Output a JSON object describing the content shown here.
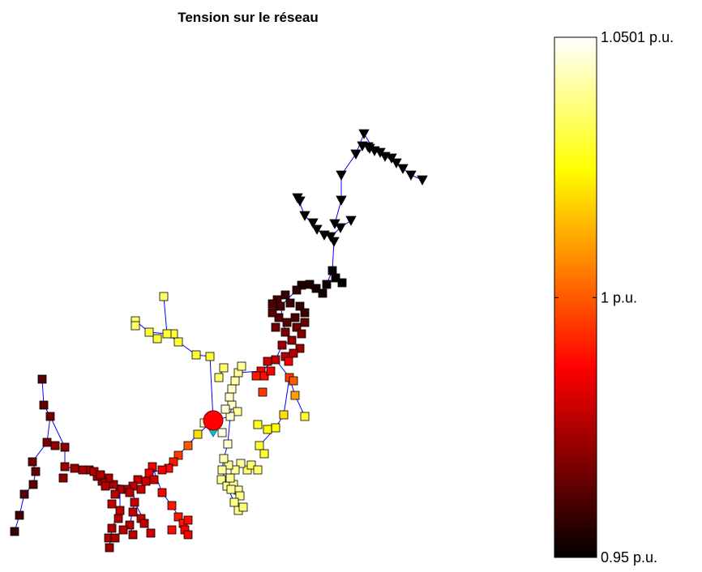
{
  "chart_data": {
    "type": "scatter",
    "title": "Tension sur le réseau",
    "xlabel": "",
    "ylabel": "",
    "grid": false,
    "axes_visible": false,
    "legend": "none",
    "colormap": "hot",
    "colorbar": {
      "location": "right",
      "range": [
        0.95,
        1.0501
      ],
      "ticks": [
        {
          "value": 0.95,
          "label": "0.95 p.u."
        },
        {
          "value": 1.0,
          "label": "1 p.u."
        },
        {
          "value": 1.0501,
          "label": "1.0501 p.u."
        }
      ]
    },
    "series": [
      {
        "marker": "circle",
        "role": "source",
        "points": [
          [
            263,
            519,
            1.0
          ]
        ]
      },
      {
        "marker": "triangle-down",
        "points": [
          [
            367,
            244,
            0.95
          ],
          [
            370,
            248,
            0.95
          ],
          [
            376,
            266,
            0.95
          ],
          [
            386,
            275,
            0.95
          ],
          [
            391,
            283,
            0.95
          ],
          [
            400,
            290,
            0.95
          ],
          [
            408,
            292,
            0.95
          ],
          [
            413,
            276,
            0.95
          ],
          [
            420,
            281,
            0.95
          ],
          [
            433,
            272,
            0.95
          ],
          [
            421,
            247,
            0.95
          ],
          [
            421,
            216,
            0.95
          ],
          [
            439,
            190,
            0.95
          ],
          [
            447,
            180,
            0.95
          ],
          [
            449,
            165,
            0.95
          ],
          [
            454,
            181,
            0.95
          ],
          [
            462,
            186,
            0.95
          ],
          [
            469,
            188,
            0.95
          ],
          [
            475,
            193,
            0.95
          ],
          [
            483,
            195,
            0.95
          ],
          [
            489,
            201,
            0.95
          ],
          [
            497,
            208,
            0.95
          ],
          [
            507,
            216,
            0.95
          ],
          [
            521,
            222,
            0.95
          ],
          [
            456,
            183,
            0.95
          ],
          [
            412,
            298,
            0.95
          ]
        ]
      },
      {
        "marker": "square",
        "points": [
          [
            410,
            334,
            0.951
          ],
          [
            414,
            343,
            0.951
          ],
          [
            403,
            351,
            0.952
          ],
          [
            422,
            349,
            0.951
          ],
          [
            398,
            362,
            0.953
          ],
          [
            390,
            356,
            0.953
          ],
          [
            382,
            351,
            0.954
          ],
          [
            372,
            352,
            0.955
          ],
          [
            366,
            358,
            0.956
          ],
          [
            352,
            364,
            0.958
          ],
          [
            342,
            370,
            0.96
          ],
          [
            336,
            375,
            0.961
          ],
          [
            346,
            378,
            0.96
          ],
          [
            358,
            374,
            0.958
          ],
          [
            370,
            378,
            0.957
          ],
          [
            376,
            386,
            0.958
          ],
          [
            364,
            392,
            0.96
          ],
          [
            354,
            398,
            0.962
          ],
          [
            344,
            392,
            0.962
          ],
          [
            336,
            386,
            0.963
          ],
          [
            340,
            404,
            0.966
          ],
          [
            352,
            410,
            0.967
          ],
          [
            366,
            404,
            0.966
          ],
          [
            376,
            398,
            0.965
          ],
          [
            372,
            412,
            0.968
          ],
          [
            360,
            420,
            0.97
          ],
          [
            348,
            426,
            0.972
          ],
          [
            370,
            430,
            0.973
          ],
          [
            362,
            436,
            0.975
          ],
          [
            352,
            440,
            0.976
          ],
          [
            340,
            444,
            0.978
          ],
          [
            330,
            446,
            0.98
          ],
          [
            322,
            458,
            0.985
          ],
          [
            316,
            464,
            0.99
          ],
          [
            326,
            464,
            0.988
          ],
          [
            334,
            458,
            0.986
          ],
          [
            324,
            484,
            0.995
          ],
          [
            356,
            446,
            0.985
          ],
          [
            357,
            466,
            0.995
          ],
          [
            362,
            470,
            1.0
          ],
          [
            364,
            488,
            1.01
          ],
          [
            376,
            514,
            1.03
          ],
          [
            350,
            512,
            1.02
          ],
          [
            340,
            528,
            1.025
          ],
          [
            330,
            530,
            1.025
          ],
          [
            318,
            524,
            1.028
          ],
          [
            320,
            550,
            1.03
          ],
          [
            326,
            560,
            1.03
          ],
          [
            305,
            580,
            1.035
          ],
          [
            310,
            574,
            1.035
          ],
          [
            318,
            580,
            1.035
          ],
          [
            297,
            572,
            1.04
          ],
          [
            290,
            580,
            1.04
          ],
          [
            282,
            574,
            1.04
          ],
          [
            276,
            566,
            1.042
          ],
          [
            274,
            580,
            1.04
          ],
          [
            273,
            592,
            1.04
          ],
          [
            280,
            600,
            1.04
          ],
          [
            288,
            598,
            1.04
          ],
          [
            294,
            605,
            1.04
          ],
          [
            296,
            612,
            1.038
          ],
          [
            289,
            620,
            1.038
          ],
          [
            294,
            630,
            1.038
          ],
          [
            300,
            626,
            1.036
          ],
          [
            284,
            590,
            1.04
          ],
          [
            285,
            604,
            1.04
          ],
          [
            281,
            548,
            1.045
          ],
          [
            274,
            534,
            1.048
          ],
          [
            286,
            500,
            1.045
          ],
          [
            283,
            490,
            1.045
          ],
          [
            286,
            480,
            1.045
          ],
          [
            290,
            470,
            1.042
          ],
          [
            294,
            460,
            1.04
          ],
          [
            298,
            452,
            1.04
          ],
          [
            293,
            508,
            1.04
          ],
          [
            284,
            514,
            1.045
          ],
          [
            278,
            505,
            1.046
          ],
          [
            276,
            454,
            1.035
          ],
          [
            270,
            466,
            1.035
          ],
          [
            259,
            440,
            1.03
          ],
          [
            242,
            438,
            1.03
          ],
          [
            220,
            422,
            1.03
          ],
          [
            214,
            412,
            1.03
          ],
          [
            206,
            412,
            1.03
          ],
          [
            194,
            418,
            1.03
          ],
          [
            184,
            410,
            1.03
          ],
          [
            167,
            396,
            1.035
          ],
          [
            167,
            402,
            1.035
          ],
          [
            202,
            366,
            1.035
          ],
          [
            252,
            522,
            1.045
          ],
          [
            244,
            536,
            1.02
          ],
          [
            232,
            550,
            1.0
          ],
          [
            220,
            562,
            0.995
          ],
          [
            214,
            570,
            0.99
          ],
          [
            208,
            578,
            0.988
          ],
          [
            200,
            580,
            0.985
          ],
          [
            188,
            576,
            0.985
          ],
          [
            184,
            584,
            0.985
          ],
          [
            190,
            592,
            0.98
          ],
          [
            180,
            594,
            0.98
          ],
          [
            170,
            592,
            0.978
          ],
          [
            164,
            600,
            0.978
          ],
          [
            156,
            604,
            0.976
          ],
          [
            148,
            604,
            0.976
          ],
          [
            140,
            598,
            0.975
          ],
          [
            134,
            590,
            0.975
          ],
          [
            126,
            594,
            0.975
          ],
          [
            120,
            588,
            0.975
          ],
          [
            110,
            580,
            0.975
          ],
          [
            102,
            580,
            0.974
          ],
          [
            92,
            578,
            0.973
          ],
          [
            80,
            576,
            0.972
          ],
          [
            78,
            590,
            0.97
          ],
          [
            80,
            552,
            0.97
          ],
          [
            68,
            550,
            0.97
          ],
          [
            58,
            546,
            0.968
          ],
          [
            62,
            514,
            0.966
          ],
          [
            54,
            500,
            0.964
          ],
          [
            52,
            468,
            0.962
          ],
          [
            40,
            570,
            0.966
          ],
          [
            44,
            582,
            0.965
          ],
          [
            41,
            598,
            0.963
          ],
          [
            30,
            610,
            0.962
          ],
          [
            24,
            636,
            0.96
          ],
          [
            18,
            656,
            0.958
          ],
          [
            130,
            600,
            0.976
          ],
          [
            142,
            610,
            0.977
          ],
          [
            138,
            622,
            0.978
          ],
          [
            148,
            630,
            0.978
          ],
          [
            146,
            640,
            0.976
          ],
          [
            138,
            652,
            0.975
          ],
          [
            134,
            664,
            0.975
          ],
          [
            142,
            664,
            0.974
          ],
          [
            135,
            676,
            0.972
          ],
          [
            160,
            608,
            0.977
          ],
          [
            166,
            620,
            0.978
          ],
          [
            164,
            632,
            0.977
          ],
          [
            160,
            648,
            0.976
          ],
          [
            164,
            660,
            0.976
          ],
          [
            152,
            654,
            0.976
          ],
          [
            174,
            640,
            0.978
          ],
          [
            178,
            646,
            0.978
          ],
          [
            186,
            658,
            0.98
          ],
          [
            200,
            608,
            0.985
          ],
          [
            212,
            624,
            0.99
          ],
          [
            220,
            638,
            0.99
          ],
          [
            226,
            646,
            0.99
          ],
          [
            232,
            642,
            0.988
          ],
          [
            228,
            654,
            0.986
          ],
          [
            232,
            660,
            0.985
          ],
          [
            212,
            654,
            0.988
          ],
          [
            116,
            582,
            0.975
          ],
          [
            124,
            586,
            0.975
          ],
          [
            174,
            604,
            0.979
          ]
        ]
      }
    ],
    "edges": [
      [
        [
          367,
          244
        ],
        [
          376,
          266
        ],
        [
          391,
          283
        ],
        [
          400,
          290
        ],
        [
          408,
          292
        ],
        [
          412,
          298
        ],
        [
          410,
          334
        ]
      ],
      [
        [
          408,
          292
        ],
        [
          420,
          281
        ],
        [
          433,
          272
        ]
      ],
      [
        [
          413,
          276
        ],
        [
          421,
          247
        ],
        [
          421,
          216
        ],
        [
          439,
          190
        ],
        [
          449,
          165
        ]
      ],
      [
        [
          449,
          165
        ],
        [
          462,
          186
        ],
        [
          475,
          193
        ],
        [
          489,
          201
        ],
        [
          507,
          216
        ],
        [
          521,
          222
        ]
      ],
      [
        [
          410,
          334
        ],
        [
          398,
          362
        ],
        [
          372,
          352
        ],
        [
          346,
          378
        ],
        [
          352,
          410
        ],
        [
          360,
          420
        ],
        [
          348,
          426
        ],
        [
          340,
          444
        ],
        [
          322,
          458
        ],
        [
          294,
          460
        ],
        [
          286,
          480
        ],
        [
          286,
          500
        ],
        [
          284,
          514
        ],
        [
          263,
          519
        ]
      ],
      [
        [
          263,
          519
        ],
        [
          244,
          536
        ],
        [
          220,
          562
        ],
        [
          200,
          580
        ],
        [
          184,
          584
        ],
        [
          164,
          600
        ],
        [
          140,
          598
        ],
        [
          120,
          588
        ],
        [
          102,
          580
        ],
        [
          80,
          576
        ],
        [
          80,
          552
        ],
        [
          62,
          514
        ],
        [
          54,
          500
        ],
        [
          52,
          468
        ]
      ],
      [
        [
          62,
          514
        ],
        [
          58,
          546
        ],
        [
          40,
          570
        ],
        [
          44,
          582
        ],
        [
          41,
          598
        ],
        [
          30,
          610
        ],
        [
          24,
          636
        ],
        [
          18,
          656
        ]
      ],
      [
        [
          263,
          519
        ],
        [
          259,
          440
        ],
        [
          242,
          438
        ],
        [
          220,
          422
        ],
        [
          206,
          412
        ],
        [
          184,
          410
        ],
        [
          167,
          396
        ]
      ],
      [
        [
          206,
          412
        ],
        [
          202,
          366
        ]
      ],
      [
        [
          276,
          454
        ],
        [
          270,
          466
        ]
      ],
      [
        [
          340,
          444
        ],
        [
          357,
          466
        ],
        [
          364,
          488
        ],
        [
          376,
          514
        ]
      ],
      [
        [
          357,
          466
        ],
        [
          350,
          512
        ],
        [
          340,
          528
        ],
        [
          320,
          550
        ],
        [
          326,
          560
        ]
      ],
      [
        [
          284,
          514
        ],
        [
          281,
          548
        ],
        [
          276,
          566
        ],
        [
          274,
          580
        ],
        [
          280,
          600
        ],
        [
          289,
          620
        ],
        [
          294,
          630
        ]
      ],
      [
        [
          148,
          604
        ],
        [
          148,
          630
        ],
        [
          138,
          652
        ],
        [
          135,
          676
        ]
      ],
      [
        [
          188,
          576
        ],
        [
          200,
          608
        ],
        [
          212,
          624
        ],
        [
          226,
          646
        ],
        [
          232,
          660
        ]
      ],
      [
        [
          164,
          600
        ],
        [
          166,
          620
        ],
        [
          160,
          648
        ],
        [
          164,
          660
        ]
      ],
      [
        [
          166,
          620
        ],
        [
          186,
          658
        ]
      ]
    ]
  }
}
